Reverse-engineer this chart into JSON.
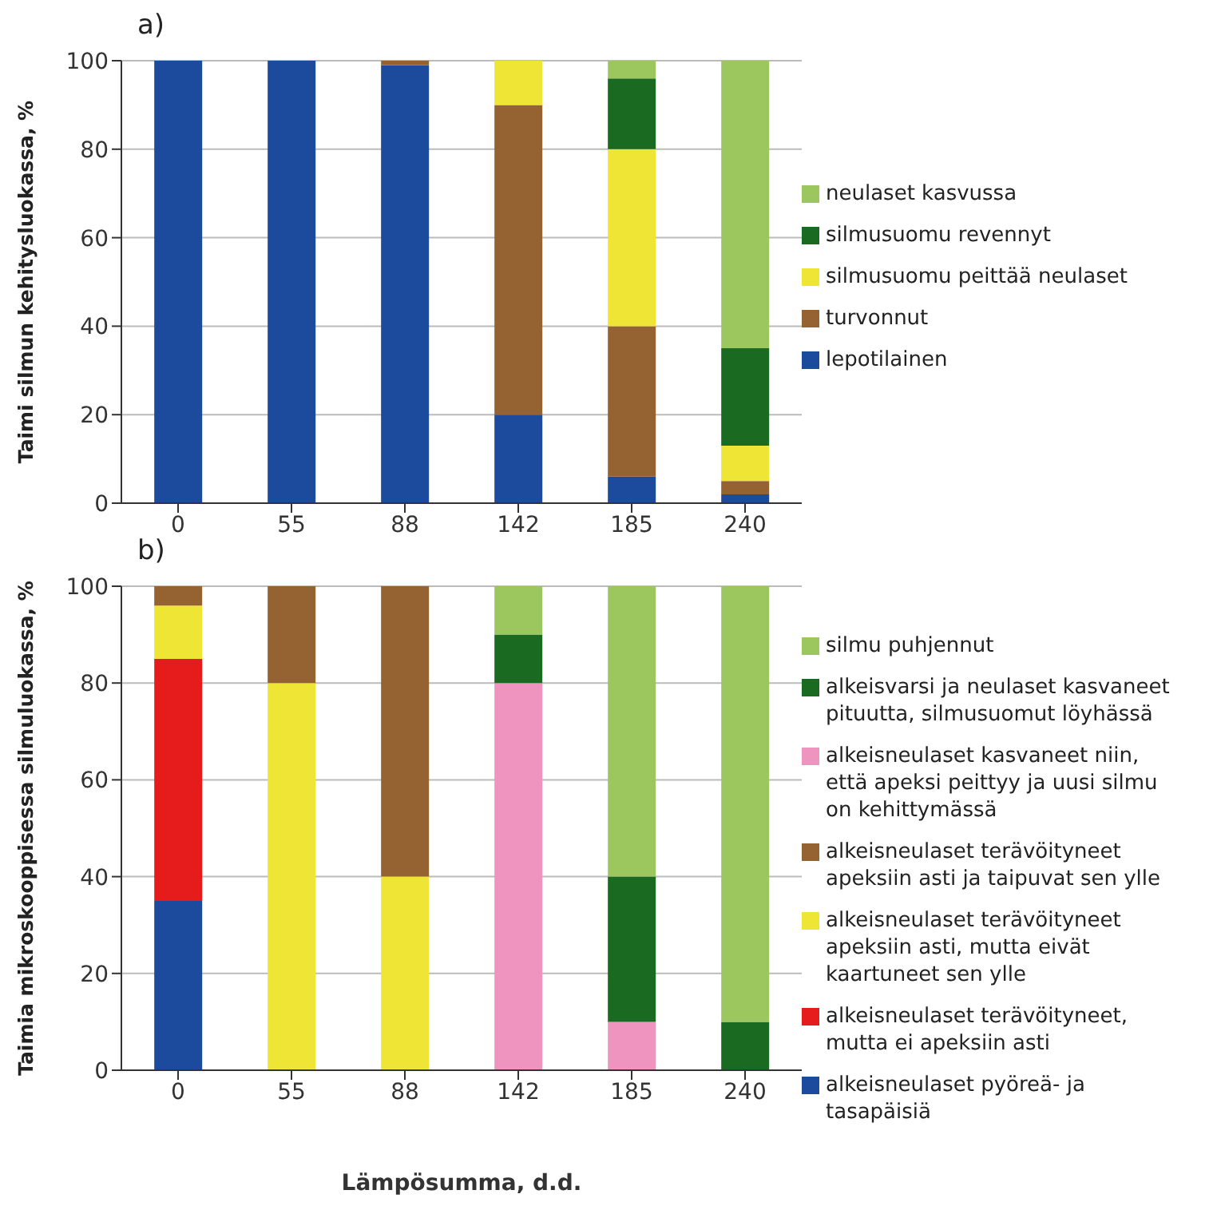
{
  "chart_data": [
    {
      "type": "bar",
      "title": "a)",
      "ylabel": "Taimi silmun kehitysluokassa, %",
      "categories": [
        "0",
        "55",
        "88",
        "142",
        "185",
        "240"
      ],
      "stacked": true,
      "ylim": [
        0,
        100
      ],
      "yticks": [
        0,
        20,
        40,
        60,
        80,
        100
      ],
      "grid": "y",
      "legend": "right",
      "series": [
        {
          "name": "lepotilainen",
          "color": "#1c4a9c",
          "values": [
            100,
            100,
            99,
            20,
            6,
            2
          ]
        },
        {
          "name": "turvonnut",
          "color": "#956232",
          "values": [
            0,
            0,
            1,
            70,
            34,
            3
          ]
        },
        {
          "name": "silmusuomu peittää neulaset",
          "color": "#eee534",
          "values": [
            0,
            0,
            0,
            10,
            40,
            8
          ]
        },
        {
          "name": "silmusuomu revennyt",
          "color": "#1b6a22",
          "values": [
            0,
            0,
            0,
            0,
            16,
            22
          ]
        },
        {
          "name": "neulaset kasvussa",
          "color": "#9cc75e",
          "values": [
            0,
            0,
            0,
            0,
            4,
            65
          ]
        }
      ]
    },
    {
      "type": "bar",
      "title": "b)",
      "ylabel": "Taimia mikroskooppisessa silmuluokassa, %",
      "xlabel": "Lämpösumma, d.d.",
      "categories": [
        "0",
        "55",
        "88",
        "142",
        "185",
        "240"
      ],
      "stacked": true,
      "ylim": [
        0,
        100
      ],
      "yticks": [
        0,
        20,
        40,
        60,
        80,
        100
      ],
      "grid": "y",
      "legend": "right",
      "series": [
        {
          "name": "alkeisneulaset pyöreä- ja tasapäisiä",
          "color": "#1c4a9c",
          "values": [
            35,
            0,
            0,
            0,
            0,
            0
          ]
        },
        {
          "name": "alkeisneulaset terävöityneet, mutta ei apeksiin asti",
          "color": "#e61c1c",
          "values": [
            50,
            0,
            0,
            0,
            0,
            0
          ]
        },
        {
          "name": "alkeisneulaset terävöityneet apeksiin asti, mutta eivät kaartuneet sen ylle",
          "color": "#eee534",
          "values": [
            11,
            80,
            40,
            0,
            0,
            0
          ]
        },
        {
          "name": "alkeisneulaset terävöityneet apeksiin asti ja taipuvat sen ylle",
          "color": "#956232",
          "values": [
            4,
            20,
            60,
            0,
            0,
            0
          ]
        },
        {
          "name": "alkeisneulaset kasvaneet niin, että apeksi peittyy ja uusi silmu on kehittymässä",
          "color": "#ee94bf",
          "values": [
            0,
            0,
            0,
            80,
            10,
            0
          ]
        },
        {
          "name": "alkeisvarsi ja neulaset kasvaneet pituutta, silmusuomut löyhässä",
          "color": "#1b6a22",
          "values": [
            0,
            0,
            0,
            10,
            30,
            10
          ]
        },
        {
          "name": "silmu puhjennut",
          "color": "#9cc75e",
          "values": [
            0,
            0,
            0,
            10,
            60,
            90
          ]
        }
      ]
    }
  ]
}
